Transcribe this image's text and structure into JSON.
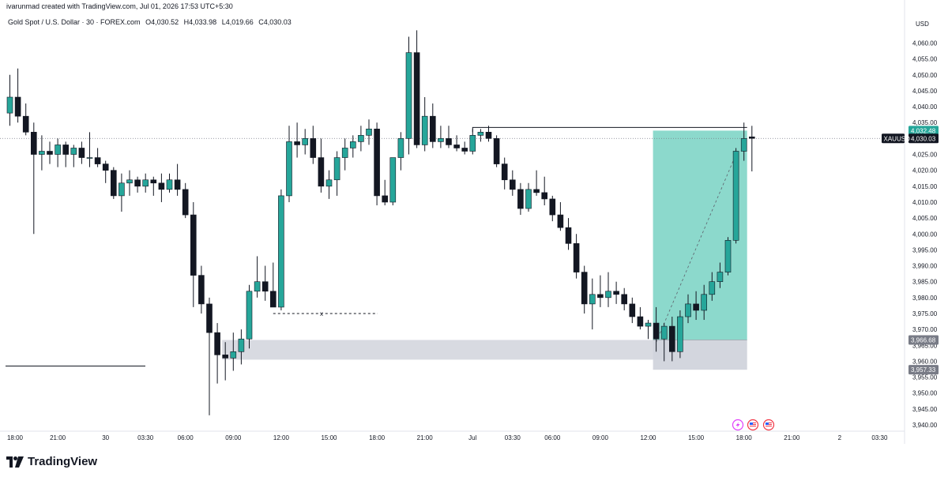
{
  "attribution": "ivarunmad created with TradingView.com, Jul 01, 2026 17:53 UTC+5:30",
  "legend": {
    "symbol": "Gold Spot / U.S. Dollar · 30 · FOREX.com",
    "open": "O4,030.52",
    "high": "H4,033.98",
    "low": "L4,019.66",
    "close": "C4,030.03"
  },
  "currency": "USD",
  "logo_text": "TradingView",
  "colors": {
    "up": "#26a69a",
    "down": "#131722",
    "zone": "#80d5c7",
    "gray_zone": "#d1d4dc",
    "tag_dark": "#131722",
    "tag_gray": "#787b86"
  },
  "price_tags": {
    "symbol_label": "XAUUSD",
    "last": "4,030.03",
    "high_level": "4,032.48",
    "stop_level": "3,966.68",
    "low_level": "3,957.33"
  },
  "annotation_marker": "x",
  "flags": [
    "lightning-icon",
    "us-flag-icon",
    "us-flag-icon"
  ],
  "chart_data": {
    "type": "candlestick",
    "symbol": "XAUUSD",
    "timeframe": "30",
    "ylim": [
      3940,
      4064
    ],
    "y_ticks": [
      "4,060.00",
      "4,055.00",
      "4,050.00",
      "4,045.00",
      "4,040.00",
      "4,035.00",
      "4,030.00",
      "4,025.00",
      "4,020.00",
      "4,015.00",
      "4,010.00",
      "4,005.00",
      "4,000.00",
      "3,995.00",
      "3,990.00",
      "3,985.00",
      "3,980.00",
      "3,975.00",
      "3,970.00",
      "3,965.00",
      "3,960.00",
      "3,955.00",
      "3,950.00",
      "3,945.00",
      "3,940.00"
    ],
    "x_ticks": [
      {
        "label": "18:00",
        "index": 0
      },
      {
        "label": "21:00",
        "index": 6
      },
      {
        "label": "30",
        "index": 12
      },
      {
        "label": "03:30",
        "index": 17
      },
      {
        "label": "06:00",
        "index": 22
      },
      {
        "label": "09:00",
        "index": 28
      },
      {
        "label": "12:00",
        "index": 34
      },
      {
        "label": "15:00",
        "index": 40
      },
      {
        "label": "18:00",
        "index": 46
      },
      {
        "label": "21:00",
        "index": 52
      },
      {
        "label": "Jul",
        "index": 58
      },
      {
        "label": "03:30",
        "index": 63
      },
      {
        "label": "06:00",
        "index": 68
      },
      {
        "label": "09:00",
        "index": 74
      },
      {
        "label": "12:00",
        "index": 80
      },
      {
        "label": "15:00",
        "index": 86
      },
      {
        "label": "18:00",
        "index": 92
      },
      {
        "label": "21:00",
        "index": 98
      },
      {
        "label": "2",
        "index": 104
      },
      {
        "label": "03:30",
        "index": 109
      }
    ],
    "candles": [
      {
        "o": 4038,
        "h": 4050,
        "l": 4034,
        "c": 4043
      },
      {
        "o": 4043,
        "h": 4052,
        "l": 4035,
        "c": 4037
      },
      {
        "o": 4037,
        "h": 4041,
        "l": 4031,
        "c": 4032
      },
      {
        "o": 4032,
        "h": 4035,
        "l": 4000,
        "c": 4025
      },
      {
        "o": 4025,
        "h": 4031,
        "l": 4020,
        "c": 4026
      },
      {
        "o": 4026,
        "h": 4029,
        "l": 4022,
        "c": 4025
      },
      {
        "o": 4025,
        "h": 4030,
        "l": 4021,
        "c": 4028
      },
      {
        "o": 4028,
        "h": 4029,
        "l": 4021,
        "c": 4025
      },
      {
        "o": 4025,
        "h": 4028,
        "l": 4021,
        "c": 4027
      },
      {
        "o": 4027,
        "h": 4029,
        "l": 4022,
        "c": 4024
      },
      {
        "o": 4024,
        "h": 4032,
        "l": 4021,
        "c": 4024
      },
      {
        "o": 4024,
        "h": 4027,
        "l": 4021,
        "c": 4022
      },
      {
        "o": 4022,
        "h": 4023,
        "l": 4016,
        "c": 4020
      },
      {
        "o": 4020,
        "h": 4021,
        "l": 4011,
        "c": 4012
      },
      {
        "o": 4012,
        "h": 4019,
        "l": 4007,
        "c": 4016
      },
      {
        "o": 4016,
        "h": 4020,
        "l": 4012,
        "c": 4017
      },
      {
        "o": 4017,
        "h": 4018,
        "l": 4013,
        "c": 4015
      },
      {
        "o": 4015,
        "h": 4019,
        "l": 4013,
        "c": 4017
      },
      {
        "o": 4017,
        "h": 4018,
        "l": 4012,
        "c": 4016
      },
      {
        "o": 4016,
        "h": 4019,
        "l": 4010,
        "c": 4014
      },
      {
        "o": 4014,
        "h": 4019,
        "l": 4013,
        "c": 4017
      },
      {
        "o": 4017,
        "h": 4022,
        "l": 4012,
        "c": 4014
      },
      {
        "o": 4014,
        "h": 4016,
        "l": 4005,
        "c": 4006
      },
      {
        "o": 4006,
        "h": 4010,
        "l": 3977,
        "c": 3987
      },
      {
        "o": 3987,
        "h": 3990,
        "l": 3975,
        "c": 3978
      },
      {
        "o": 3978,
        "h": 3980,
        "l": 3943,
        "c": 3969
      },
      {
        "o": 3969,
        "h": 3972,
        "l": 3953,
        "c": 3962
      },
      {
        "o": 3962,
        "h": 3966,
        "l": 3954,
        "c": 3961
      },
      {
        "o": 3961,
        "h": 3969,
        "l": 3957,
        "c": 3963
      },
      {
        "o": 3963,
        "h": 3970,
        "l": 3959,
        "c": 3967
      },
      {
        "o": 3967,
        "h": 3984,
        "l": 3964,
        "c": 3982
      },
      {
        "o": 3982,
        "h": 3993,
        "l": 3980,
        "c": 3985
      },
      {
        "o": 3985,
        "h": 3990,
        "l": 3979,
        "c": 3982
      },
      {
        "o": 3982,
        "h": 3991,
        "l": 3978,
        "c": 3977
      },
      {
        "o": 3977,
        "h": 4014,
        "l": 3976,
        "c": 4012
      },
      {
        "o": 4012,
        "h": 4034,
        "l": 4010,
        "c": 4029
      },
      {
        "o": 4029,
        "h": 4035,
        "l": 4024,
        "c": 4028
      },
      {
        "o": 4028,
        "h": 4033,
        "l": 4025,
        "c": 4030
      },
      {
        "o": 4030,
        "h": 4034,
        "l": 4022,
        "c": 4024
      },
      {
        "o": 4024,
        "h": 4030,
        "l": 4013,
        "c": 4015
      },
      {
        "o": 4015,
        "h": 4020,
        "l": 4011,
        "c": 4017
      },
      {
        "o": 4017,
        "h": 4026,
        "l": 4012,
        "c": 4024
      },
      {
        "o": 4024,
        "h": 4030,
        "l": 4020,
        "c": 4027
      },
      {
        "o": 4027,
        "h": 4031,
        "l": 4024,
        "c": 4029
      },
      {
        "o": 4029,
        "h": 4034,
        "l": 4026,
        "c": 4031
      },
      {
        "o": 4031,
        "h": 4036,
        "l": 4028,
        "c": 4033
      },
      {
        "o": 4033,
        "h": 4035,
        "l": 4009,
        "c": 4012
      },
      {
        "o": 4012,
        "h": 4017,
        "l": 4009,
        "c": 4010
      },
      {
        "o": 4010,
        "h": 4024,
        "l": 4009,
        "c": 4024
      },
      {
        "o": 4024,
        "h": 4032,
        "l": 4020,
        "c": 4030
      },
      {
        "o": 4030,
        "h": 4062,
        "l": 4025,
        "c": 4057
      },
      {
        "o": 4057,
        "h": 4064,
        "l": 4027,
        "c": 4028
      },
      {
        "o": 4028,
        "h": 4043,
        "l": 4026,
        "c": 4037
      },
      {
        "o": 4037,
        "h": 4041,
        "l": 4027,
        "c": 4029
      },
      {
        "o": 4029,
        "h": 4034,
        "l": 4027,
        "c": 4030
      },
      {
        "o": 4030,
        "h": 4034,
        "l": 4027,
        "c": 4028
      },
      {
        "o": 4028,
        "h": 4031,
        "l": 4026,
        "c": 4027
      },
      {
        "o": 4027,
        "h": 4029,
        "l": 4025,
        "c": 4026
      },
      {
        "o": 4026,
        "h": 4033,
        "l": 4025,
        "c": 4031
      },
      {
        "o": 4031,
        "h": 4033,
        "l": 4029,
        "c": 4032
      },
      {
        "o": 4032,
        "h": 4034,
        "l": 4029,
        "c": 4030
      },
      {
        "o": 4030,
        "h": 4031,
        "l": 4021,
        "c": 4022
      },
      {
        "o": 4022,
        "h": 4024,
        "l": 4014,
        "c": 4017
      },
      {
        "o": 4017,
        "h": 4020,
        "l": 4012,
        "c": 4014
      },
      {
        "o": 4014,
        "h": 4016,
        "l": 4006,
        "c": 4008
      },
      {
        "o": 4008,
        "h": 4016,
        "l": 4007,
        "c": 4014
      },
      {
        "o": 4014,
        "h": 4020,
        "l": 4012,
        "c": 4013
      },
      {
        "o": 4013,
        "h": 4018,
        "l": 4009,
        "c": 4011
      },
      {
        "o": 4011,
        "h": 4012,
        "l": 4004,
        "c": 4006
      },
      {
        "o": 4006,
        "h": 4010,
        "l": 4001,
        "c": 4002
      },
      {
        "o": 4002,
        "h": 4005,
        "l": 3995,
        "c": 3997
      },
      {
        "o": 3997,
        "h": 4000,
        "l": 3986,
        "c": 3988
      },
      {
        "o": 3988,
        "h": 3990,
        "l": 3975,
        "c": 3978
      },
      {
        "o": 3978,
        "h": 3986,
        "l": 3970,
        "c": 3981
      },
      {
        "o": 3981,
        "h": 3987,
        "l": 3977,
        "c": 3980
      },
      {
        "o": 3980,
        "h": 3988,
        "l": 3977,
        "c": 3982
      },
      {
        "o": 3982,
        "h": 3985,
        "l": 3978,
        "c": 3981
      },
      {
        "o": 3981,
        "h": 3983,
        "l": 3976,
        "c": 3978
      },
      {
        "o": 3978,
        "h": 3980,
        "l": 3972,
        "c": 3974
      },
      {
        "o": 3974,
        "h": 3977,
        "l": 3970,
        "c": 3971
      },
      {
        "o": 3971,
        "h": 3973,
        "l": 3967,
        "c": 3972
      },
      {
        "o": 3972,
        "h": 3977,
        "l": 3963,
        "c": 3967
      },
      {
        "o": 3967,
        "h": 3972,
        "l": 3960,
        "c": 3971
      },
      {
        "o": 3971,
        "h": 3974,
        "l": 3960,
        "c": 3963
      },
      {
        "o": 3963,
        "h": 3976,
        "l": 3961,
        "c": 3974
      },
      {
        "o": 3974,
        "h": 3981,
        "l": 3972,
        "c": 3978
      },
      {
        "o": 3978,
        "h": 3982,
        "l": 3973,
        "c": 3976
      },
      {
        "o": 3976,
        "h": 3984,
        "l": 3973,
        "c": 3981
      },
      {
        "o": 3981,
        "h": 3988,
        "l": 3979,
        "c": 3985
      },
      {
        "o": 3985,
        "h": 3991,
        "l": 3983,
        "c": 3988
      },
      {
        "o": 3988,
        "h": 3999,
        "l": 3987,
        "c": 3998
      },
      {
        "o": 3998,
        "h": 4027,
        "l": 3997,
        "c": 4026
      },
      {
        "o": 4026,
        "h": 4035,
        "l": 4023,
        "c": 4030
      },
      {
        "o": 4030.52,
        "h": 4033.98,
        "l": 4019.66,
        "c": 4030.03
      }
    ],
    "levels": {
      "last_price": 4030.03,
      "resistance_line": 4032.48,
      "stop_line": 3966.68,
      "target_low": 3957.33,
      "marked_low": 3975
    },
    "zones": [
      {
        "type": "demand-zone",
        "from_index": 27,
        "to_index": 82,
        "top": 3966.68,
        "bottom": 3960.5
      },
      {
        "type": "long-position-profit",
        "from_index": 81,
        "to_index": 92,
        "top": 4032.48,
        "bottom": 3966.68
      },
      {
        "type": "long-position-risk",
        "from_index": 81,
        "to_index": 92,
        "top": 3966.68,
        "bottom": 3957.33
      }
    ]
  }
}
